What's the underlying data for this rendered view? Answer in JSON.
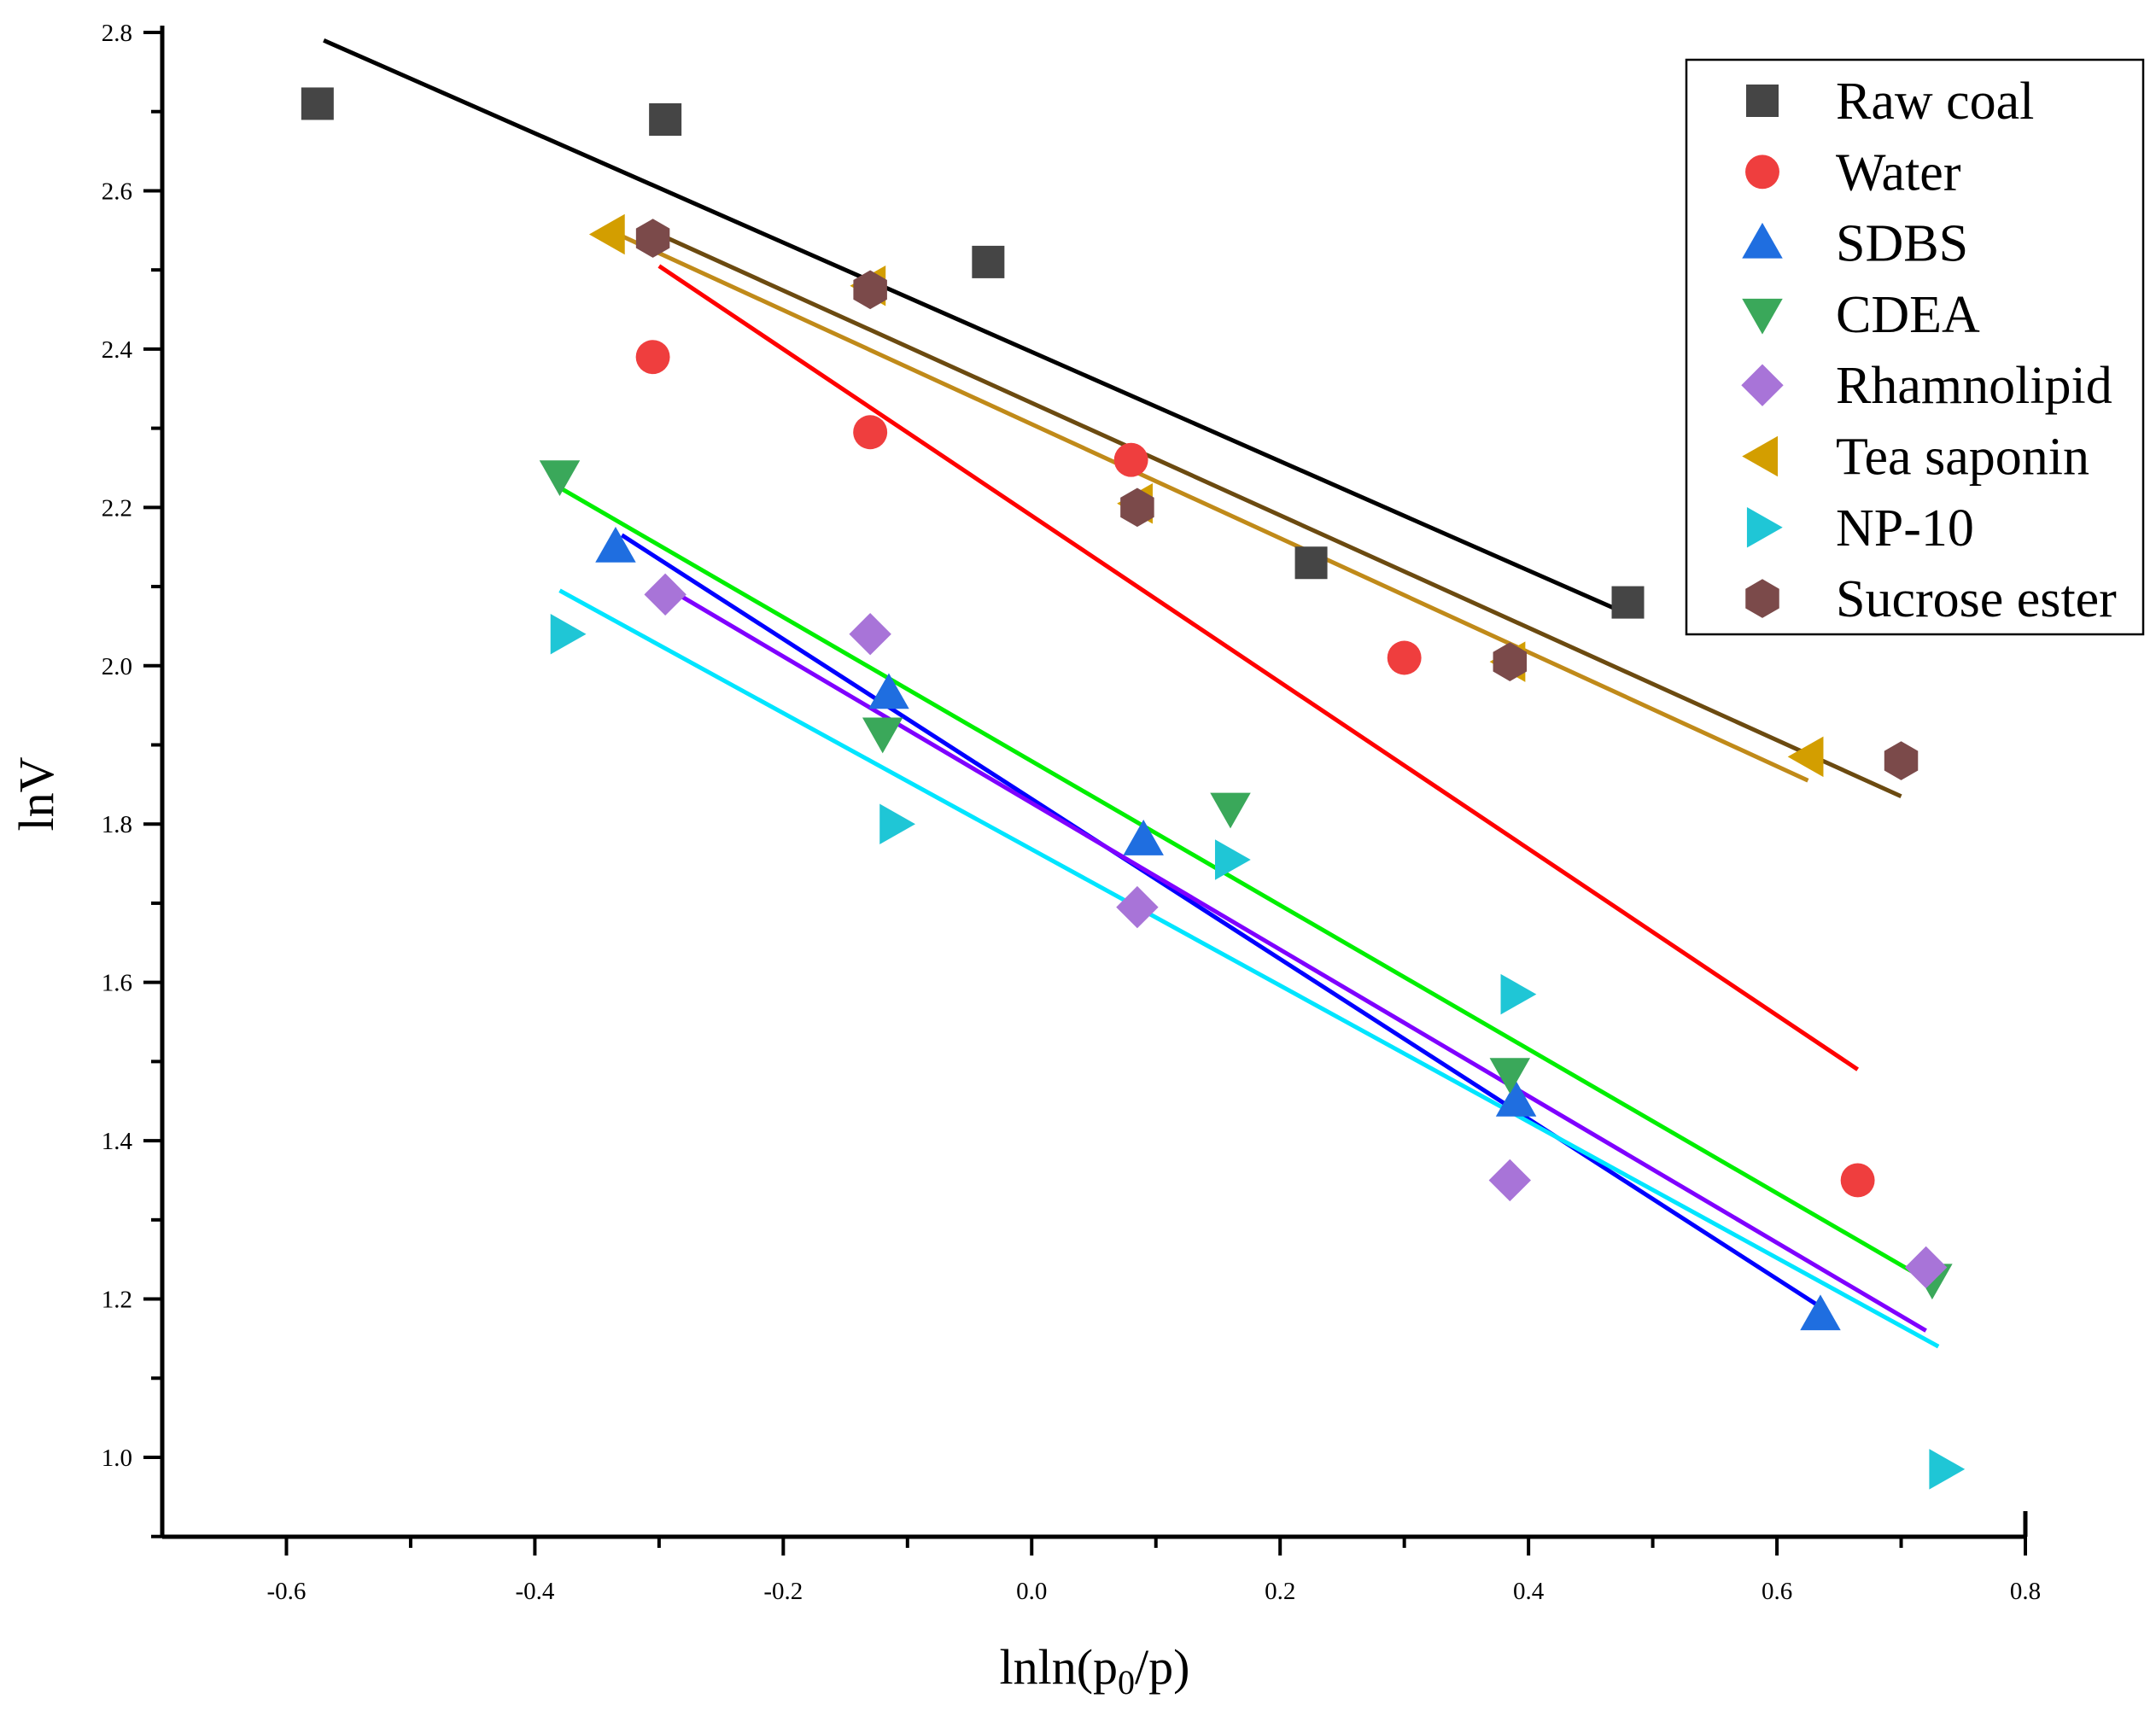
{
  "chart_data": {
    "type": "scatter",
    "title": "",
    "xlabel": "lnln(p0/p)",
    "xlabel_main": "lnln(p",
    "xlabel_sub": "0",
    "xlabel_end": "/p)",
    "ylabel": "lnV",
    "xlim": [
      -0.7,
      0.8
    ],
    "ylim": [
      0.9,
      2.8
    ],
    "x_ticks": [
      -0.6,
      -0.4,
      -0.2,
      0.0,
      0.2,
      0.4,
      0.6,
      0.8
    ],
    "x_tick_labels": [
      "-0.6",
      "-0.4",
      "-0.2",
      "0.0",
      "0.2",
      "0.4",
      "0.6",
      "0.8"
    ],
    "y_ticks": [
      1.0,
      1.2,
      1.4,
      1.6,
      1.8,
      2.0,
      2.2,
      2.4,
      2.6,
      2.8
    ],
    "y_tick_labels": [
      "1.0",
      "1.2",
      "1.4",
      "1.6",
      "1.8",
      "2.0",
      "2.2",
      "2.4",
      "2.6",
      "2.8"
    ],
    "legend_position": "top-right",
    "series": [
      {
        "name": "Raw coal",
        "marker": "square",
        "marker_color": "#454545",
        "line_color": "#000000",
        "x": [
          -0.575,
          -0.295,
          -0.035,
          0.225,
          0.48
        ],
        "y": [
          2.71,
          2.69,
          2.51,
          2.13,
          2.08
        ],
        "fit": {
          "x": [
            -0.57,
            0.48
          ],
          "y": [
            2.79,
            2.065
          ]
        }
      },
      {
        "name": "Water",
        "marker": "circle",
        "marker_color": "#ef3e3e",
        "line_color": "#ff0000",
        "x": [
          -0.305,
          -0.13,
          0.08,
          0.3,
          0.665
        ],
        "y": [
          2.39,
          2.295,
          2.26,
          2.01,
          1.35
        ],
        "fit": {
          "x": [
            -0.3,
            0.665
          ],
          "y": [
            2.505,
            1.49
          ]
        }
      },
      {
        "name": "SDBS",
        "marker": "triangle-up",
        "marker_color": "#1f6ee0",
        "line_color": "#0000ff",
        "x": [
          -0.335,
          -0.115,
          0.09,
          0.39,
          0.635
        ],
        "y": [
          2.15,
          1.965,
          1.78,
          1.45,
          1.18
        ],
        "fit": {
          "x": [
            -0.33,
            0.635
          ],
          "y": [
            2.165,
            1.19
          ]
        }
      },
      {
        "name": "CDEA",
        "marker": "triangle-down",
        "marker_color": "#3aa85a",
        "line_color": "#00ee00",
        "x": [
          -0.38,
          -0.12,
          0.16,
          0.385,
          0.725
        ],
        "y": [
          2.24,
          1.915,
          1.82,
          1.485,
          1.225
        ],
        "fit": {
          "x": [
            -0.38,
            0.725
          ],
          "y": [
            2.225,
            1.22
          ]
        }
      },
      {
        "name": "Rhamnolipid",
        "marker": "diamond",
        "marker_color": "#a874d8",
        "line_color": "#7f00ff",
        "x": [
          -0.295,
          -0.13,
          0.085,
          0.385,
          0.72
        ],
        "y": [
          2.09,
          2.04,
          1.695,
          1.35,
          1.24
        ],
        "fit": {
          "x": [
            -0.29,
            0.72
          ],
          "y": [
            2.095,
            1.16
          ]
        }
      },
      {
        "name": "Tea saponin",
        "marker": "triangle-left",
        "marker_color": "#d39e00",
        "line_color": "#c08a19",
        "x": [
          -0.34,
          -0.13,
          0.085,
          0.385,
          0.625
        ],
        "y": [
          2.545,
          2.48,
          2.205,
          2.005,
          1.885
        ],
        "fit": {
          "x": [
            -0.34,
            0.625
          ],
          "y": [
            2.55,
            1.855
          ]
        }
      },
      {
        "name": "NP-10",
        "marker": "triangle-right",
        "marker_color": "#1fc6d6",
        "line_color": "#00e5ff",
        "x": [
          -0.375,
          -0.11,
          0.16,
          0.39,
          0.735
        ],
        "y": [
          2.04,
          1.8,
          1.755,
          1.585,
          0.985
        ],
        "fit": {
          "x": [
            -0.38,
            0.73
          ],
          "y": [
            2.095,
            1.14
          ]
        }
      },
      {
        "name": "Sucrose ester",
        "marker": "hexagon",
        "marker_color": "#7b4a4a",
        "line_color": "#6b4a10",
        "x": [
          -0.305,
          -0.13,
          0.085,
          0.385,
          0.7
        ],
        "y": [
          2.54,
          2.475,
          2.2,
          2.005,
          1.88
        ],
        "fit": {
          "x": [
            -0.3,
            0.7
          ],
          "y": [
            2.545,
            1.835
          ]
        }
      }
    ]
  }
}
